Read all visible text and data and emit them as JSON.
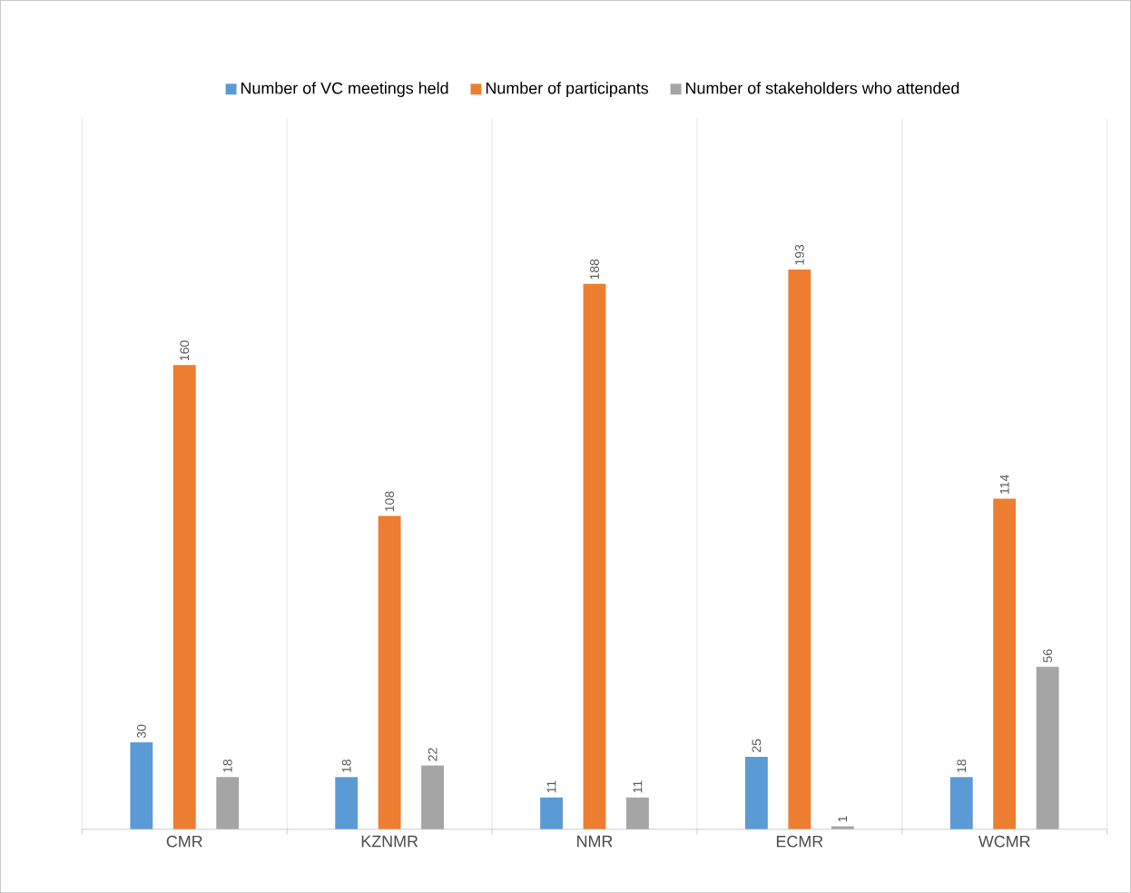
{
  "chart_data": {
    "type": "bar",
    "categories": [
      "CMR",
      "KZNMR",
      "NMR",
      "ECMR",
      "WCMR"
    ],
    "series": [
      {
        "name": "Number of VC meetings held",
        "color": "#5b9bd5",
        "values": [
          30,
          18,
          11,
          25,
          18
        ]
      },
      {
        "name": "Number of participants",
        "color": "#ed7d31",
        "values": [
          160,
          108,
          188,
          193,
          114
        ]
      },
      {
        "name": "Number of stakeholders who attended",
        "color": "#a5a5a5",
        "values": [
          18,
          22,
          11,
          1,
          56
        ]
      }
    ],
    "data_labels": true,
    "grid": "x",
    "legend": "top"
  }
}
